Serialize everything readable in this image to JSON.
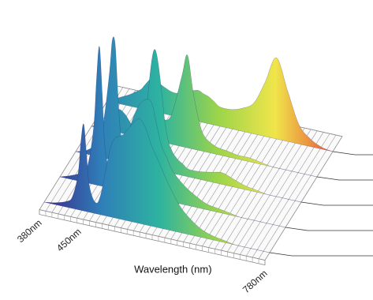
{
  "chart_data": {
    "type": "area",
    "view": "3d-waterfall",
    "title": "",
    "xlabel": "Wavelength (nm)",
    "ylabel": "",
    "x_ticks": [
      {
        "value": 380,
        "label": "380nm"
      },
      {
        "value": 450,
        "label": "450nm"
      },
      {
        "value": 780,
        "label": "780nm"
      }
    ],
    "xlim": [
      380,
      780
    ],
    "ylim": [
      0,
      1
    ],
    "grid": true,
    "legend": "none",
    "colormap": [
      "#3b2a8c",
      "#2f7fb8",
      "#2db3a0",
      "#9bd44a",
      "#f0e54a",
      "#e8553a"
    ],
    "x": [
      380,
      400,
      420,
      430,
      440,
      445,
      450,
      455,
      460,
      470,
      480,
      500,
      520,
      540,
      550,
      560,
      570,
      580,
      600,
      620,
      640,
      660,
      680,
      700,
      720,
      740,
      760,
      780
    ],
    "series": [
      {
        "values": [
          0.0,
          0.01,
          0.03,
          0.06,
          0.18,
          0.35,
          0.45,
          0.3,
          0.14,
          0.06,
          0.1,
          0.38,
          0.44,
          0.52,
          0.54,
          0.5,
          0.42,
          0.36,
          0.24,
          0.14,
          0.08,
          0.04,
          0.02,
          0.01,
          0.0,
          0.0,
          0.0,
          0.0
        ]
      },
      {
        "values": [
          0.0,
          0.02,
          0.05,
          0.1,
          0.3,
          0.55,
          0.72,
          0.48,
          0.2,
          0.08,
          0.1,
          0.3,
          0.46,
          0.5,
          0.4,
          0.28,
          0.22,
          0.16,
          0.1,
          0.06,
          0.03,
          0.02,
          0.01,
          0.0,
          0.0,
          0.0,
          0.0,
          0.0
        ]
      },
      {
        "values": [
          0.0,
          0.02,
          0.08,
          0.2,
          0.45,
          0.62,
          0.6,
          0.34,
          0.14,
          0.06,
          0.08,
          0.18,
          0.62,
          0.22,
          0.12,
          0.08,
          0.06,
          0.04,
          0.04,
          0.05,
          0.06,
          0.04,
          0.02,
          0.01,
          0.0,
          0.0,
          0.0,
          0.0
        ]
      },
      {
        "values": [
          0.0,
          0.03,
          0.1,
          0.12,
          0.1,
          0.08,
          0.06,
          0.05,
          0.05,
          0.06,
          0.08,
          0.12,
          0.14,
          0.36,
          0.48,
          0.3,
          0.16,
          0.08,
          0.04,
          0.03,
          0.02,
          0.02,
          0.01,
          0.0,
          0.0,
          0.0,
          0.0,
          0.0
        ]
      },
      {
        "values": [
          0.0,
          0.03,
          0.06,
          0.08,
          0.1,
          0.12,
          0.14,
          0.16,
          0.18,
          0.16,
          0.14,
          0.12,
          0.14,
          0.16,
          0.15,
          0.14,
          0.12,
          0.1,
          0.1,
          0.12,
          0.16,
          0.28,
          0.42,
          0.26,
          0.1,
          0.04,
          0.01,
          0.0
        ]
      }
    ]
  }
}
